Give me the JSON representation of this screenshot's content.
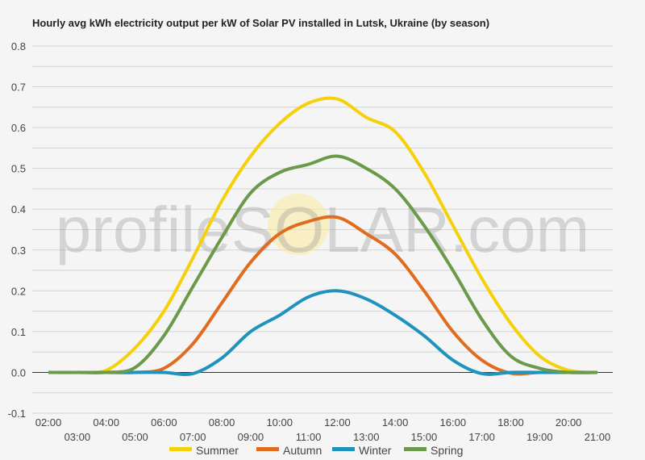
{
  "chart_data": {
    "type": "line",
    "title": "Hourly avg kWh electricity output per kW of Solar PV installed in Lutsk, Ukraine (by season)",
    "xlabel": "",
    "ylabel": "",
    "x": [
      "02:00",
      "03:00",
      "04:00",
      "05:00",
      "06:00",
      "07:00",
      "08:00",
      "09:00",
      "10:00",
      "11:00",
      "12:00",
      "13:00",
      "14:00",
      "15:00",
      "16:00",
      "17:00",
      "18:00",
      "19:00",
      "20:00",
      "21:00"
    ],
    "ylim": [
      -0.1,
      0.8
    ],
    "yticks": [
      "-0.1",
      "0.0",
      "0.1",
      "0.2",
      "0.3",
      "0.4",
      "0.5",
      "0.6",
      "0.7",
      "0.8"
    ],
    "grid": true,
    "legend_position": "bottom",
    "series": [
      {
        "name": "Summer",
        "color": "#f5d10c",
        "values": [
          0,
          0,
          0.005,
          0.06,
          0.15,
          0.28,
          0.42,
          0.53,
          0.61,
          0.66,
          0.67,
          0.625,
          0.59,
          0.49,
          0.36,
          0.23,
          0.12,
          0.04,
          0.005,
          0
        ]
      },
      {
        "name": "Autumn",
        "color": "#e06c1f",
        "values": [
          0,
          0,
          0,
          0,
          0.01,
          0.07,
          0.17,
          0.27,
          0.34,
          0.37,
          0.38,
          0.34,
          0.29,
          0.2,
          0.1,
          0.03,
          -0.002,
          0,
          0,
          0
        ]
      },
      {
        "name": "Winter",
        "color": "#1f93be",
        "values": [
          0,
          0,
          0,
          0,
          0,
          -0.003,
          0.035,
          0.1,
          0.14,
          0.185,
          0.2,
          0.18,
          0.14,
          0.09,
          0.03,
          -0.003,
          0,
          0,
          0,
          0
        ]
      },
      {
        "name": "Spring",
        "color": "#6a9a4a",
        "values": [
          0,
          0,
          0,
          0.012,
          0.09,
          0.21,
          0.33,
          0.44,
          0.49,
          0.51,
          0.53,
          0.5,
          0.45,
          0.36,
          0.25,
          0.13,
          0.04,
          0.01,
          0,
          0
        ]
      }
    ]
  },
  "watermark": "profileSOLAR.com"
}
